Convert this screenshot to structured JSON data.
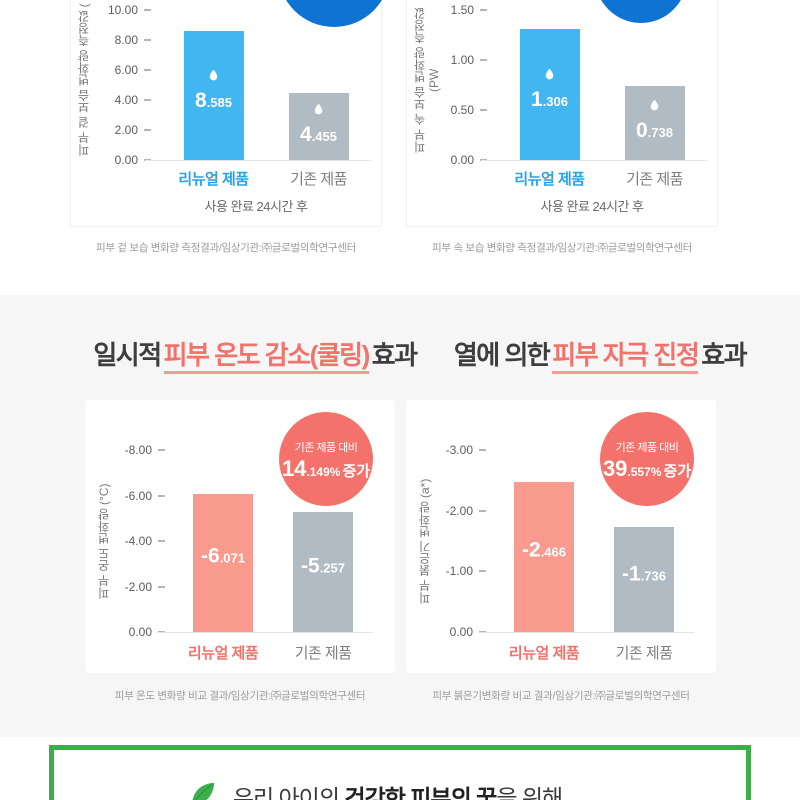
{
  "colors": {
    "bar-blue": "#41b6f1",
    "bar-gray": "#b1bbc3",
    "bar-pink": "#f99a8e",
    "badge-pink": "#f3736c",
    "circle-blue": "#0f74d1",
    "accent-blue": "#2aa2e6",
    "accent-pink": "#f2736c",
    "green": "#3cae4b"
  },
  "page": {
    "section_titles": [
      {
        "prefix": "일시적",
        "highlight": "피부 온도 감소(쿨링)",
        "suffix": "효과"
      },
      {
        "prefix": "열에 의한",
        "highlight": "피부 자극 진정",
        "suffix": "효과"
      }
    ],
    "footer": {
      "prefix": "우리 아이의 ",
      "bold": "건강한 피부의 꿈",
      "suffix": "을 위해"
    }
  },
  "chart_data": [
    {
      "type": "bar",
      "theme": "blue",
      "droplets": true,
      "ylabel": "피부 겉 보습 변화량 측정값 (",
      "ytick_labels": [
        "10.00",
        "8.00",
        "6.00",
        "4.00",
        "2.00",
        "0.00"
      ],
      "ylim": [
        0,
        10
      ],
      "axis_max": 10,
      "categories": [
        "리뉴얼 제품",
        "기존 제품"
      ],
      "values": [
        8.585,
        4.455
      ],
      "value_parts": [
        {
          "int": "8",
          "dec": ".585"
        },
        {
          "int": "4",
          "dec": ".455"
        }
      ],
      "xlabel": "사용 완료 24시간 후",
      "caption": "피부 겉 보습 변화량 측정결과/임상기관:㈜글로벌의학연구센터"
    },
    {
      "type": "bar",
      "theme": "blue",
      "droplets": true,
      "ylabel": "피부 속 보습 변화량 측정값 (PW",
      "ytick_labels": [
        "1.50",
        "1.00",
        "0.50",
        "0.00"
      ],
      "ylim": [
        0,
        1.5
      ],
      "axis_max": 1.5,
      "categories": [
        "리뉴얼 제품",
        "기존 제품"
      ],
      "values": [
        1.306,
        0.738
      ],
      "value_parts": [
        {
          "int": "1",
          "dec": ".306"
        },
        {
          "int": "0",
          "dec": ".738"
        }
      ],
      "xlabel": "사용 완료 24시간 후",
      "caption": "피부 속 보습 변화량 측정결과/임상기관:㈜글로벌의학연구센터"
    },
    {
      "type": "bar",
      "theme": "pink",
      "droplets": false,
      "ylabel": "피부 온도 변화량 (°C)",
      "ytick_labels": [
        "-8.00",
        "-6.00",
        "-4.00",
        "-2.00",
        "0.00"
      ],
      "ylim": [
        -8,
        0
      ],
      "axis_max": 8,
      "categories": [
        "리뉴얼 제품",
        "기존 제품"
      ],
      "values": [
        -6.071,
        -5.257
      ],
      "value_parts": [
        {
          "int": "-6",
          "dec": ".071"
        },
        {
          "int": "-5",
          "dec": ".257"
        }
      ],
      "badge": {
        "line1": "기존 제품 대비",
        "value_int": "14",
        "value_dec": ".149%",
        "suffix": "증가"
      },
      "caption": "피부 온도 변화량 비교 결과/임상기관:㈜글로벌의학연구센터"
    },
    {
      "type": "bar",
      "theme": "pink",
      "droplets": false,
      "ylabel": "피부 붉은기 변화량 (a*)",
      "ytick_labels": [
        "-3.00",
        "-2.00",
        "-1.00",
        "0.00"
      ],
      "ylim": [
        -3,
        0
      ],
      "axis_max": 3,
      "categories": [
        "리뉴얼 제품",
        "기존 제품"
      ],
      "values": [
        -2.466,
        -1.736
      ],
      "value_parts": [
        {
          "int": "-2",
          "dec": ".466"
        },
        {
          "int": "-1",
          "dec": ".736"
        }
      ],
      "badge": {
        "line1": "기존 제품 대비",
        "value_int": "39",
        "value_dec": ".557%",
        "suffix": "증가"
      },
      "caption": "피부 붉은기변화량 비교 결과/임상기관:㈜글로벌의학연구센터"
    }
  ]
}
